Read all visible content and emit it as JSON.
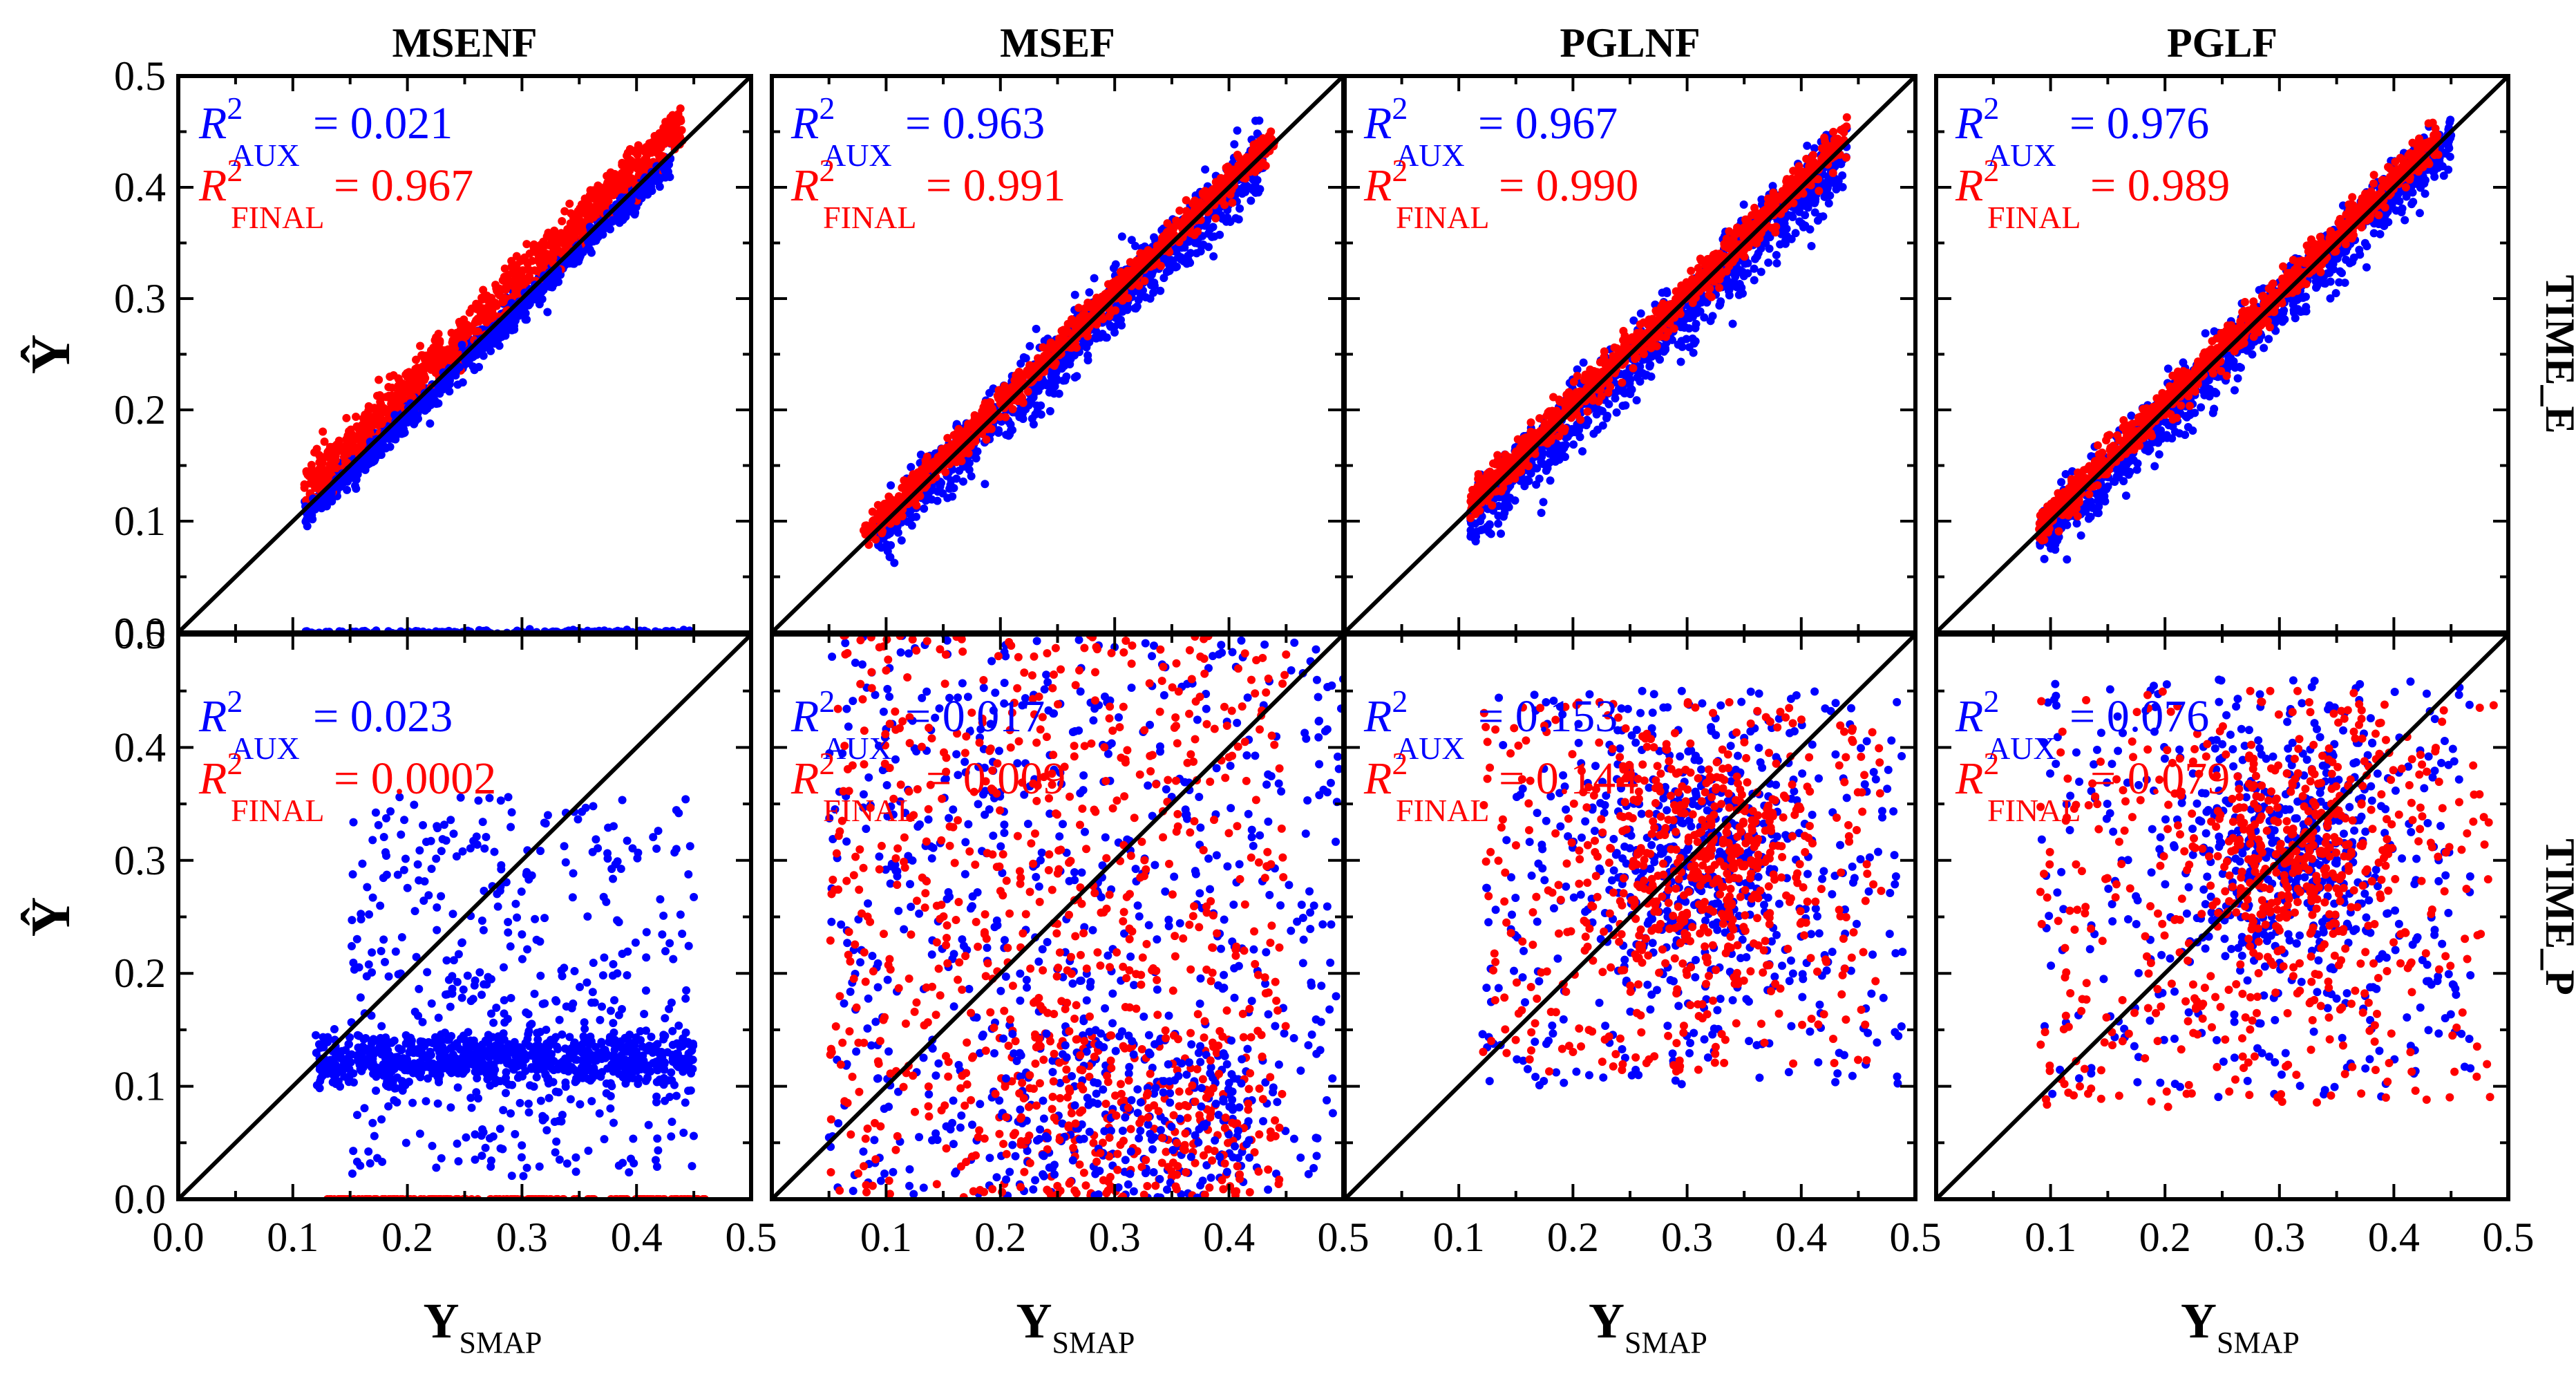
{
  "figure": {
    "column_titles": [
      "MSENF",
      "MSEF",
      "PGLNF",
      "PGLF"
    ],
    "row_titles": [
      "TIME_E",
      "TIME_P"
    ],
    "ylabel": "Ŷ",
    "xlabel_main": "Y",
    "xlabel_sub": "SMAP",
    "r2_symbol": "R",
    "r2_sup": "2",
    "aux_sub": "AUX",
    "final_sub": "FINAL",
    "aux_color": "#0000ff",
    "final_color": "#ff0000",
    "axis_color": "#000000",
    "x_ticks_first": [
      "0.0",
      "0.1",
      "0.2",
      "0.3",
      "0.4",
      "0.5"
    ],
    "x_ticks_other": [
      "0.1",
      "0.2",
      "0.3",
      "0.4",
      "0.5"
    ],
    "y_ticks": [
      "0.0",
      "0.1",
      "0.2",
      "0.3",
      "0.4",
      "0.5"
    ]
  },
  "chart_data": [
    {
      "type": "scatter",
      "panel": "TIME_E / MSENF",
      "xlim": [
        0,
        0.5
      ],
      "ylim": [
        0,
        0.5
      ],
      "r2_aux": "= 0.021",
      "r2_final": "= 0.967",
      "aux_pattern": "line",
      "aux_range": [
        0.11,
        0.43
      ],
      "aux_intercept": -0.005,
      "aux_spread": 0.007,
      "final_pattern": "line",
      "final_range": [
        0.11,
        0.44
      ],
      "final_intercept": 0.02,
      "final_spread": 0.01,
      "aux_zero_band": [
        0.11,
        0.45
      ]
    },
    {
      "type": "scatter",
      "panel": "TIME_E / MSEF",
      "xlim": [
        0,
        0.5
      ],
      "ylim": [
        0,
        0.5
      ],
      "r2_aux": "= 0.963",
      "r2_final": "= 0.991",
      "aux_pattern": "line",
      "aux_range": [
        0.09,
        0.43
      ],
      "aux_intercept": -0.005,
      "aux_spread": 0.015,
      "final_pattern": "line",
      "final_range": [
        0.08,
        0.44
      ],
      "final_intercept": 0.005,
      "final_spread": 0.007
    },
    {
      "type": "scatter",
      "panel": "TIME_E / PGLNF",
      "xlim": [
        0,
        0.5
      ],
      "ylim": [
        0,
        0.5
      ],
      "r2_aux": "= 0.967",
      "r2_final": "= 0.990",
      "aux_pattern": "line",
      "aux_range": [
        0.11,
        0.44
      ],
      "aux_intercept": -0.01,
      "aux_spread": 0.016,
      "final_pattern": "line",
      "final_range": [
        0.11,
        0.44
      ],
      "final_intercept": 0.005,
      "final_spread": 0.008
    },
    {
      "type": "scatter",
      "panel": "TIME_E / PGLF",
      "xlim": [
        0,
        0.5
      ],
      "ylim": [
        0,
        0.5
      ],
      "r2_aux": "= 0.976",
      "r2_final": "= 0.989",
      "aux_pattern": "line",
      "aux_range": [
        0.09,
        0.45
      ],
      "aux_intercept": -0.005,
      "aux_spread": 0.014,
      "final_pattern": "line",
      "final_range": [
        0.09,
        0.44
      ],
      "final_intercept": 0.005,
      "final_spread": 0.008
    },
    {
      "type": "scatter",
      "panel": "TIME_P / MSENF",
      "xlim": [
        0,
        0.5
      ],
      "ylim": [
        0,
        0.5
      ],
      "r2_aux": "= 0.023",
      "r2_final": "= 0.0002",
      "aux_pattern": "band",
      "aux_x": [
        0.12,
        0.45
      ],
      "aux_center_y": 0.125,
      "aux_extra_x": [
        0.15,
        0.45
      ],
      "aux_extra_y": [
        0.02,
        0.36
      ],
      "final_zero_band": [
        0.13,
        0.46
      ]
    },
    {
      "type": "scatter",
      "panel": "TIME_P / MSEF",
      "xlim": [
        0,
        0.5
      ],
      "ylim": [
        0,
        0.5
      ],
      "r2_aux": "= 0.017",
      "r2_final": "= 0.009",
      "aux_pattern": "cloud",
      "aux_x": [
        0.05,
        0.5
      ],
      "aux_y": [
        0.0,
        0.5
      ],
      "final_pattern": "cloud",
      "final_x": [
        0.05,
        0.45
      ],
      "final_y": [
        0.0,
        0.5
      ],
      "dense_y": [
        0.0,
        0.15
      ]
    },
    {
      "type": "scatter",
      "panel": "TIME_P / PGLNF",
      "xlim": [
        0,
        0.5
      ],
      "ylim": [
        0,
        0.5
      ],
      "r2_aux": "= 0.153",
      "r2_final": "= 0.144",
      "aux_pattern": "cloud",
      "aux_x": [
        0.12,
        0.49
      ],
      "aux_y": [
        0.1,
        0.45
      ],
      "final_pattern": "cloud",
      "final_x": [
        0.12,
        0.47
      ],
      "final_y": [
        0.11,
        0.44
      ],
      "center": [
        0.31,
        0.3
      ]
    },
    {
      "type": "scatter",
      "panel": "TIME_P / PGLF",
      "xlim": [
        0,
        0.5
      ],
      "ylim": [
        0,
        0.5
      ],
      "r2_aux": "= 0.076",
      "r2_final": "= 0.079",
      "aux_pattern": "cloud",
      "aux_x": [
        0.09,
        0.47
      ],
      "aux_y": [
        0.09,
        0.46
      ],
      "final_pattern": "cloud",
      "final_x": [
        0.09,
        0.49
      ],
      "final_y": [
        0.08,
        0.45
      ],
      "center": [
        0.31,
        0.3
      ]
    }
  ]
}
